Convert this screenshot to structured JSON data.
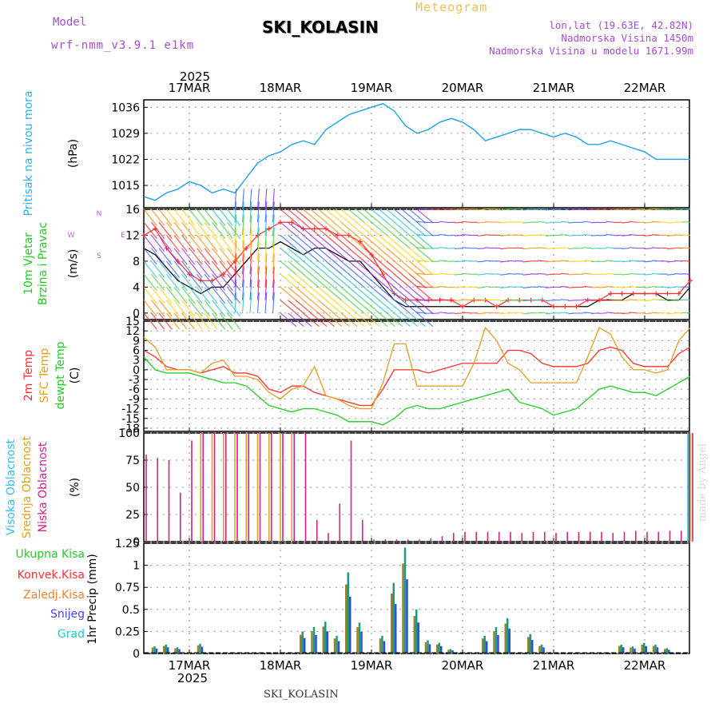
{
  "header": {
    "model_label": "Model",
    "model_version": "wrf-nmm_v3.9.1 e1km",
    "meteogram_label": "Meteogram",
    "station": "SKI_KOLASIN",
    "lonlat": "lon,lat (19.63E, 42.82N)",
    "elevation": "Nadmorska Visina 1450m",
    "model_elevation": "Nadmorska Visina u modelu 1671.99m"
  },
  "footer": {
    "station": "SKI_KOLASIN",
    "credit": "made by Angel"
  },
  "chart_data": [
    {
      "type": "line",
      "panel": "pressure",
      "ylabels": [
        "Pritisak na nivou mora",
        "(hPa)"
      ],
      "yticks": [
        1015,
        1022,
        1029,
        1036
      ],
      "ylim": [
        1009,
        1038
      ],
      "x_top_year": "2025",
      "x_top_ticks": [
        "17MAR",
        "18MAR",
        "19MAR",
        "20MAR",
        "21MAR",
        "22MAR"
      ],
      "x_hours": [
        0,
        3,
        6,
        9,
        12,
        15,
        18,
        21,
        24,
        27,
        30,
        33,
        36,
        39,
        42,
        45,
        48,
        51,
        54,
        57,
        60,
        63,
        66,
        69,
        72,
        75,
        78,
        81,
        84,
        87,
        90,
        93,
        96,
        99,
        102,
        105,
        108,
        111,
        114,
        117,
        120,
        123,
        126,
        129,
        132,
        135,
        138,
        141,
        144
      ],
      "series": [
        {
          "color": "#1ea0e6",
          "values": [
            1012,
            1011,
            1013,
            1014,
            1016,
            1015,
            1013,
            1014,
            1013,
            1017,
            1021,
            1023,
            1024,
            1026,
            1027,
            1026,
            1030,
            1032,
            1034,
            1035,
            1036,
            1037,
            1035,
            1031,
            1029,
            1030,
            1032,
            1033,
            1032,
            1030,
            1027,
            1028,
            1029,
            1030,
            1030,
            1029,
            1028,
            1029,
            1028,
            1026,
            1026,
            1027,
            1026,
            1025,
            1024,
            1022,
            1022,
            1022,
            1022
          ]
        }
      ],
      "grid": true
    },
    {
      "type": "line",
      "panel": "wind",
      "ylabels": [
        "10m Vjetar",
        "Brzina i Pravac",
        "(m/s)"
      ],
      "yticks": [
        0,
        4,
        8,
        12,
        16
      ],
      "ylim": [
        -1,
        16
      ],
      "direction_key": [
        "N",
        "W",
        "E",
        "S"
      ],
      "series": [
        {
          "name": "speed",
          "color": "#000000",
          "values": [
            10,
            9,
            7,
            5,
            4,
            3,
            4,
            4,
            6,
            8,
            10,
            10,
            11,
            10,
            9,
            10,
            10,
            9,
            8,
            8,
            6,
            4,
            2,
            1,
            1,
            1,
            1,
            1,
            1,
            1,
            1,
            1,
            1,
            1,
            1,
            1,
            1,
            1,
            1,
            1,
            2,
            2,
            2,
            3,
            3,
            3,
            2,
            2,
            4
          ]
        },
        {
          "name": "gust",
          "color": "#ff3030",
          "values": [
            12,
            13,
            10,
            8,
            6,
            5,
            5,
            6,
            8,
            10,
            12,
            13,
            14,
            14,
            13,
            13,
            13,
            12,
            12,
            11,
            9,
            6,
            3,
            2,
            2,
            2,
            2,
            2,
            1,
            2,
            2,
            1,
            2,
            2,
            2,
            2,
            1,
            1,
            1,
            2,
            2,
            3,
            3,
            3,
            3,
            3,
            3,
            3,
            5
          ]
        }
      ],
      "grid": true
    },
    {
      "type": "line",
      "panel": "temperature",
      "ylabels": [
        "2m Temp",
        "SFC Temp",
        "dewpt Temp",
        "(C)"
      ],
      "yticks": [
        -18,
        -15,
        -12,
        -9,
        -6,
        -3,
        0,
        3,
        6,
        9,
        12,
        15
      ],
      "ylim": [
        -19,
        15
      ],
      "series": [
        {
          "name": "2m Temp",
          "color": "#ff3030",
          "values": [
            6,
            4,
            1,
            0,
            0,
            -1,
            0,
            1,
            -1,
            -1,
            -2,
            -6,
            -7,
            -5,
            -5,
            -7,
            -8,
            -9,
            -10,
            -11,
            -11,
            -6,
            0,
            0,
            0,
            -1,
            0,
            1,
            2,
            2,
            2,
            2,
            6,
            6,
            5,
            2,
            1,
            1,
            1,
            2,
            6,
            7,
            6,
            2,
            1,
            1,
            1,
            5,
            7
          ]
        },
        {
          "name": "SFC Temp",
          "color": "#e0a020",
          "values": [
            10,
            7,
            0,
            0,
            0,
            -1,
            2,
            3,
            -2,
            -2,
            -3,
            -7,
            -9,
            -6,
            -5,
            1,
            -8,
            -9,
            -11,
            -12,
            -12,
            -4,
            8,
            8,
            -5,
            -5,
            -5,
            -5,
            -5,
            2,
            13,
            9,
            2,
            0,
            -4,
            -4,
            -4,
            -4,
            -4,
            4,
            13,
            11,
            4,
            0,
            0,
            -1,
            0,
            9,
            13
          ]
        },
        {
          "name": "dewpt Temp",
          "color": "#22cc22",
          "values": [
            4,
            0,
            -1,
            -1,
            -1,
            -2,
            -3,
            -4,
            -4,
            -5,
            -8,
            -11,
            -12,
            -13,
            -12,
            -12,
            -13,
            -14,
            -16,
            -16,
            -16,
            -17,
            -15,
            -12,
            -11,
            -12,
            -12,
            -11,
            -10,
            -9,
            -8,
            -7,
            -6,
            -10,
            -11,
            -12,
            -14,
            -13,
            -12,
            -9,
            -6,
            -5,
            -6,
            -7,
            -7,
            -8,
            -6,
            -4,
            -2
          ]
        }
      ],
      "grid": true
    },
    {
      "type": "bar",
      "panel": "cloud",
      "ylabels": [
        "Visoka Oblacnost",
        "Srednja Oblacnost",
        "Niska Oblacnost",
        "(%)"
      ],
      "yticks": [
        0,
        25,
        50,
        75,
        100
      ],
      "ylim": [
        0,
        100
      ],
      "series": [
        {
          "name": "Visoka Oblacnost",
          "color": "#30c0f0",
          "values": [
            0,
            0,
            0,
            0,
            0,
            0,
            0,
            0,
            0,
            0,
            0,
            0,
            0,
            0,
            0,
            0,
            0,
            0,
            0,
            0,
            0,
            0,
            0,
            0,
            0,
            0,
            0,
            0,
            0,
            0,
            0,
            0,
            0,
            0,
            0,
            0,
            0,
            0,
            0,
            0,
            0,
            0,
            0,
            0,
            0,
            0,
            0,
            0,
            100
          ]
        },
        {
          "name": "Srednja Oblacnost",
          "color": "#e0a020",
          "values": [
            0,
            0,
            0,
            0,
            0,
            100,
            100,
            100,
            100,
            100,
            100,
            100,
            100,
            100,
            0,
            0,
            0,
            0,
            0,
            0,
            0,
            0,
            0,
            0,
            0,
            0,
            0,
            0,
            0,
            0,
            0,
            0,
            0,
            0,
            0,
            0,
            0,
            0,
            0,
            0,
            0,
            0,
            0,
            0,
            0,
            0,
            0,
            0,
            100
          ]
        },
        {
          "name": "Niska Oblacnost",
          "color": "#d0208a",
          "values": [
            80,
            77,
            75,
            45,
            93,
            100,
            100,
            100,
            100,
            100,
            100,
            100,
            100,
            100,
            100,
            20,
            8,
            35,
            93,
            20,
            2,
            2,
            2,
            2,
            2,
            3,
            5,
            8,
            9,
            9,
            9,
            9,
            9,
            8,
            9,
            9,
            8,
            9,
            9,
            9,
            9,
            8,
            9,
            10,
            9,
            9,
            10,
            10,
            100
          ]
        }
      ],
      "grid": true
    },
    {
      "type": "bar",
      "panel": "precipitation",
      "ylabels": [
        "1hr Precip (mm)"
      ],
      "yticks": [
        0,
        0.25,
        0.5,
        0.75,
        1,
        1.25
      ],
      "ylim": [
        0,
        1.25
      ],
      "legend": [
        "Ukupna Kisa",
        "Konvek.Kisa",
        "Zaledj.Kisa",
        "Snijeg",
        "Grad"
      ],
      "legend_colors": [
        "#22cc22",
        "#ff3030",
        "#f08030",
        "#4040ff",
        "#20c8c8"
      ],
      "x_bottom_ticks": [
        "17MAR",
        "18MAR",
        "19MAR",
        "20MAR",
        "21MAR",
        "22MAR"
      ],
      "x_bottom_year": "2025",
      "bars": [
        {
          "t": 1,
          "v": 0.08
        },
        {
          "t": 2,
          "v": 0.1
        },
        {
          "t": 3,
          "v": 0.07
        },
        {
          "t": 5,
          "v": 0.11
        },
        {
          "t": 14,
          "v": 0.25
        },
        {
          "t": 15,
          "v": 0.3
        },
        {
          "t": 16,
          "v": 0.36
        },
        {
          "t": 17,
          "v": 0.2
        },
        {
          "t": 18,
          "v": 0.92
        },
        {
          "t": 19,
          "v": 0.35
        },
        {
          "t": 21,
          "v": 0.2
        },
        {
          "t": 22,
          "v": 0.8
        },
        {
          "t": 23,
          "v": 1.2
        },
        {
          "t": 24,
          "v": 0.5
        },
        {
          "t": 25,
          "v": 0.15
        },
        {
          "t": 26,
          "v": 0.12
        },
        {
          "t": 27,
          "v": 0.05
        },
        {
          "t": 30,
          "v": 0.2
        },
        {
          "t": 31,
          "v": 0.3
        },
        {
          "t": 32,
          "v": 0.4
        },
        {
          "t": 34,
          "v": 0.22
        },
        {
          "t": 35,
          "v": 0.1
        },
        {
          "t": 42,
          "v": 0.1
        },
        {
          "t": 43,
          "v": 0.08
        },
        {
          "t": 44,
          "v": 0.12
        },
        {
          "t": 45,
          "v": 0.1
        },
        {
          "t": 46,
          "v": 0.06
        }
      ],
      "grid": true
    }
  ]
}
